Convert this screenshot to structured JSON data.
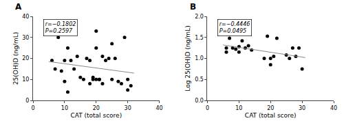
{
  "chart_data": [
    {
      "type": "scatter",
      "title": "A",
      "annotations": [
        "r=−0.1802",
        "P=0.2597"
      ],
      "series": [
        {
          "type": "scatter",
          "marker": "circle",
          "color": "#000000",
          "x": [
            6,
            7,
            8,
            9,
            10,
            10,
            11,
            11,
            12,
            13,
            14,
            15,
            16,
            17,
            18,
            18,
            19,
            19,
            20,
            20,
            20,
            21,
            21,
            22,
            22,
            23,
            24,
            25,
            25,
            26,
            27,
            28,
            29,
            30,
            30,
            31
          ],
          "values": [
            19,
            15,
            30,
            14,
            19,
            9,
            25,
            4,
            19,
            15,
            21,
            11,
            10,
            20,
            19,
            8,
            11,
            10,
            33,
            25,
            10,
            10,
            10,
            8,
            21,
            19,
            20,
            27,
            10,
            20,
            9,
            8,
            30,
            10,
            5,
            7
          ]
        },
        {
          "type": "line",
          "line_style": "solid",
          "color": "#888888",
          "x": [
            5,
            32
          ],
          "values": [
            18.5,
            13.0
          ]
        }
      ],
      "xlabel": "CAT (total score)",
      "ylabel": "25(OH)D (ng/mL)",
      "xlim": [
        0,
        40
      ],
      "ylim": [
        0,
        40
      ],
      "xticks": [
        0,
        10,
        20,
        30,
        40
      ],
      "yticks": [
        0,
        10,
        20,
        30,
        40
      ],
      "grid": false
    },
    {
      "type": "scatter",
      "title": "B",
      "annotations": [
        "r=−0.4446",
        "P=0.0495"
      ],
      "series": [
        {
          "type": "scatter",
          "marker": "circle",
          "color": "#000000",
          "x": [
            6,
            6,
            7,
            8,
            9,
            10,
            10,
            11,
            12,
            13,
            14,
            18,
            19,
            20,
            20,
            21,
            22,
            25,
            26,
            27,
            28,
            29,
            30
          ],
          "values": [
            1.15,
            1.25,
            1.48,
            1.25,
            1.22,
            1.28,
            1.15,
            1.42,
            1.25,
            1.3,
            1.2,
            1.0,
            1.53,
            1.0,
            0.85,
            1.05,
            1.48,
            1.08,
            1.0,
            1.25,
            1.05,
            1.25,
            0.75
          ]
        },
        {
          "type": "line",
          "line_style": "solid",
          "color": "#888888",
          "x": [
            5,
            31
          ],
          "values": [
            1.32,
            1.02
          ]
        }
      ],
      "xlabel": "CAT (total score)",
      "ylabel": "Log 25(OH)D (ng/mL)",
      "xlim": [
        0,
        40
      ],
      "ylim": [
        0.0,
        2.0
      ],
      "xticks": [
        0,
        10,
        20,
        30,
        40
      ],
      "yticks": [
        {
          "value": 0,
          "label": "0.0"
        },
        0.5,
        {
          "value": 1,
          "label": "1.0"
        },
        1.5,
        {
          "value": 2,
          "label": "2.0"
        }
      ],
      "grid": false
    }
  ]
}
